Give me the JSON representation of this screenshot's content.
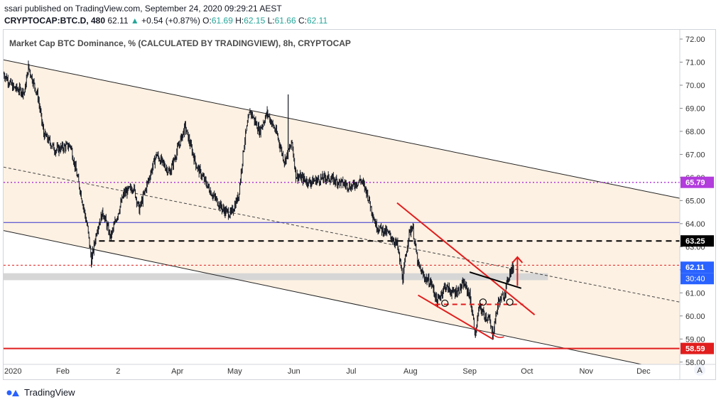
{
  "header": {
    "publisher": "ssari published on TradingView.com, September 24, 2020 09:29:21 AEST",
    "symbol": "CRYPTOCAP:BTC.D, 480",
    "last": "62.11",
    "change": "+0.54 (+0.87%)",
    "open_label": "O:",
    "open": "61.69",
    "high_label": "H:",
    "high": "62.15",
    "low_label": "L:",
    "low": "61.66",
    "close_label": "C:",
    "close": "62.11"
  },
  "footer": {
    "brand": "TradingView"
  },
  "colors": {
    "channel_fill": "#fdf1e3",
    "candle": "#131722",
    "red": "#e11d1d",
    "purple": "#b23cdc",
    "blue": "#3333cc"
  },
  "chart_data": {
    "type": "candlestick",
    "title": "Market Cap BTC Dominance, % (CALCULATED BY TRADINGVIEW), 8h, CRYPTOCAP",
    "ylim": [
      57.9,
      72.4
    ],
    "y_ticks": [
      "58.00",
      "59.00",
      "60.00",
      "61.00",
      "62.00",
      "63.00",
      "64.00",
      "65.00",
      "66.00",
      "67.00",
      "68.00",
      "69.00",
      "70.00",
      "71.00",
      "72.00"
    ],
    "x_range": [
      "2020-01-01",
      "2020-12-20"
    ],
    "x_ticks": [
      {
        "label": "2020",
        "date": "2020-01-01"
      },
      {
        "label": "Feb",
        "date": "2020-02-01"
      },
      {
        "label": "2",
        "date": "2020-03-01"
      },
      {
        "label": "Apr",
        "date": "2020-04-01"
      },
      {
        "label": "May",
        "date": "2020-05-01"
      },
      {
        "label": "Jun",
        "date": "2020-06-01"
      },
      {
        "label": "Jul",
        "date": "2020-07-01"
      },
      {
        "label": "Aug",
        "date": "2020-08-01"
      },
      {
        "label": "Sep",
        "date": "2020-09-01"
      },
      {
        "label": "Oct",
        "date": "2020-10-01"
      },
      {
        "label": "Nov",
        "date": "2020-11-01"
      },
      {
        "label": "Dec",
        "date": "2020-12-01"
      }
    ],
    "price_path": [
      [
        "2020-01-01",
        70.5
      ],
      [
        "2020-01-06",
        69.9
      ],
      [
        "2020-01-12",
        69.7
      ],
      [
        "2020-01-14",
        70.8
      ],
      [
        "2020-01-19",
        69.5
      ],
      [
        "2020-01-22",
        67.9
      ],
      [
        "2020-01-28",
        67.2
      ],
      [
        "2020-02-05",
        67.4
      ],
      [
        "2020-02-10",
        65.5
      ],
      [
        "2020-02-14",
        63.8
      ],
      [
        "2020-02-16",
        62.4
      ],
      [
        "2020-02-19",
        63.8
      ],
      [
        "2020-02-22",
        64.5
      ],
      [
        "2020-02-26",
        63.4
      ],
      [
        "2020-03-04",
        65.3
      ],
      [
        "2020-03-09",
        65.6
      ],
      [
        "2020-03-12",
        64.6
      ],
      [
        "2020-03-15",
        65.4
      ],
      [
        "2020-03-21",
        67.0
      ],
      [
        "2020-03-28",
        66.2
      ],
      [
        "2020-04-01",
        67.2
      ],
      [
        "2020-04-05",
        68.2
      ],
      [
        "2020-04-11",
        66.5
      ],
      [
        "2020-04-19",
        65.3
      ],
      [
        "2020-04-25",
        64.6
      ],
      [
        "2020-04-29",
        64.4
      ],
      [
        "2020-05-03",
        65.2
      ],
      [
        "2020-05-06",
        67.5
      ],
      [
        "2020-05-09",
        68.9
      ],
      [
        "2020-05-14",
        68.0
      ],
      [
        "2020-05-18",
        68.8
      ],
      [
        "2020-05-23",
        67.9
      ],
      [
        "2020-05-27",
        66.7
      ],
      [
        "2020-05-31",
        67.5
      ],
      [
        "2020-06-02",
        66.1
      ],
      [
        "2020-06-09",
        65.8
      ],
      [
        "2020-06-18",
        66.0
      ],
      [
        "2020-06-25",
        65.8
      ],
      [
        "2020-07-01",
        65.6
      ],
      [
        "2020-07-06",
        65.9
      ],
      [
        "2020-07-09",
        65.4
      ],
      [
        "2020-07-14",
        63.9
      ],
      [
        "2020-07-20",
        63.6
      ],
      [
        "2020-07-25",
        63.1
      ],
      [
        "2020-07-28",
        61.6
      ],
      [
        "2020-07-31",
        63.5
      ],
      [
        "2020-08-02",
        63.9
      ],
      [
        "2020-08-05",
        62.2
      ],
      [
        "2020-08-08",
        61.7
      ],
      [
        "2020-08-12",
        61.4
      ],
      [
        "2020-08-15",
        60.6
      ],
      [
        "2020-08-19",
        61.3
      ],
      [
        "2020-08-23",
        61.0
      ],
      [
        "2020-08-26",
        61.1
      ],
      [
        "2020-08-29",
        61.4
      ],
      [
        "2020-09-01",
        60.9
      ],
      [
        "2020-09-04",
        59.2
      ],
      [
        "2020-09-06",
        60.4
      ],
      [
        "2020-09-09",
        60.0
      ],
      [
        "2020-09-11",
        59.9
      ],
      [
        "2020-09-13",
        59.2
      ],
      [
        "2020-09-16",
        60.6
      ],
      [
        "2020-09-19",
        60.9
      ],
      [
        "2020-09-22",
        61.9
      ],
      [
        "2020-09-24",
        62.11
      ]
    ],
    "spikes": [
      {
        "date": "2020-02-16",
        "low": 62.1
      },
      {
        "date": "2020-05-29",
        "high": 69.6
      },
      {
        "date": "2020-07-28",
        "low": 61.4
      },
      {
        "date": "2020-09-04",
        "low": 59.05
      },
      {
        "date": "2020-09-13",
        "low": 59.05
      }
    ],
    "price_labels": [
      {
        "value": 65.79,
        "label": "65.79",
        "style": "purple"
      },
      {
        "value": 63.25,
        "label": "63.25",
        "style": "black"
      },
      {
        "value": 62.11,
        "label": "62.11",
        "style": "blue",
        "countdown": "30:40"
      },
      {
        "value": 58.59,
        "label": "58.59",
        "style": "red"
      }
    ],
    "channel": {
      "upper": [
        [
          "2020-01-01",
          71.1
        ],
        [
          "2020-12-20",
          65.1
        ]
      ],
      "lower": [
        [
          "2020-01-01",
          63.7
        ],
        [
          "2020-11-30",
          57.9
        ]
      ],
      "mid": [
        [
          "2020-01-01",
          66.45
        ],
        [
          "2020-12-20",
          60.6
        ]
      ]
    },
    "levels": [
      {
        "value": 65.79,
        "style": "purple-dotted"
      },
      {
        "value": 64.05,
        "style": "blue-solid"
      },
      {
        "value": 62.2,
        "style": "red-dotted"
      },
      {
        "value": 58.59,
        "style": "red-solid"
      }
    ],
    "black_dashed": {
      "value": 63.25,
      "from": "2020-02-20",
      "to": "2020-12-20"
    },
    "grey_band": {
      "low": 61.55,
      "high": 61.85,
      "from": "2020-01-01",
      "to": "2020-10-12"
    },
    "wedge": [
      {
        "from": [
          "2020-07-25",
          64.9
        ],
        "to": [
          "2020-10-05",
          60.05
        ]
      },
      {
        "from": [
          "2020-08-05",
          60.9
        ],
        "to": [
          "2020-09-13",
          59.0
        ]
      }
    ],
    "red_dashed": {
      "value": 60.5,
      "from": "2020-08-14",
      "to": "2020-09-29"
    },
    "red_bowl": {
      "from": "2020-09-12",
      "to": "2020-09-19",
      "value": 59.1
    },
    "black_neckline": {
      "from": [
        "2020-09-01",
        61.9
      ],
      "to": [
        "2020-09-28",
        61.2
      ]
    },
    "head_shoulders_markers": [
      {
        "date": "2020-08-19",
        "value": 60.55
      },
      {
        "date": "2020-09-08",
        "value": 60.6
      },
      {
        "date": "2020-09-22",
        "value": 60.6
      }
    ],
    "target_arrow": {
      "date": "2020-09-26",
      "from": 61.3,
      "to": 62.55
    },
    "auto_label": "A"
  }
}
